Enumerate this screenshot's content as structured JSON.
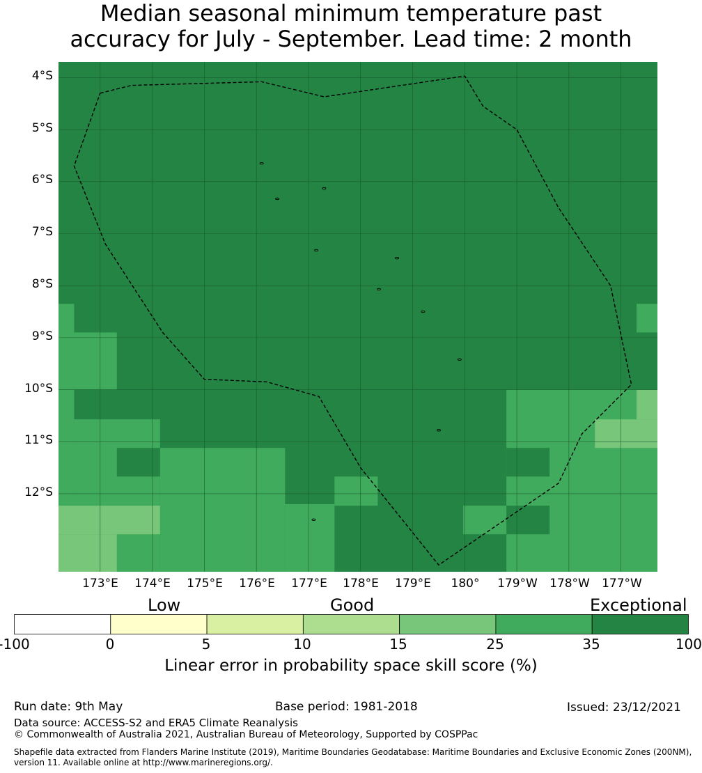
{
  "title_line1": "Median seasonal minimum temperature past",
  "title_line2": "accuracy for July - September. Lead time: 2 month",
  "map": {
    "lat_labels": [
      "4°S",
      "5°S",
      "6°S",
      "7°S",
      "8°S",
      "9°S",
      "10°S",
      "11°S",
      "12°S"
    ],
    "lon_labels": [
      "173°E",
      "174°E",
      "175°E",
      "176°E",
      "177°E",
      "178°E",
      "179°E",
      "180°",
      "179°W",
      "178°W",
      "177°W"
    ],
    "colors": {
      "c1": "#78c679",
      "c2": "#41ab5d",
      "c3": "#238443"
    },
    "cells": [
      {
        "lon0": 172.2,
        "lon1": 183.7,
        "lat0": -3.7,
        "lat1": -13.5,
        "c": "c3"
      },
      {
        "lon0": 172.2,
        "lon1": 172.5,
        "lat0": -8.35,
        "lat1": -13.5,
        "c": "c2"
      },
      {
        "lon0": 172.5,
        "lon1": 173.32,
        "lat0": -8.9,
        "lat1": -10.0,
        "c": "c2"
      },
      {
        "lon0": 172.5,
        "lon1": 174.15,
        "lat0": -10.57,
        "lat1": -13.5,
        "c": "c2"
      },
      {
        "lon0": 174.15,
        "lon1": 176.55,
        "lat0": -11.12,
        "lat1": -13.5,
        "c": "c2"
      },
      {
        "lon0": 176.55,
        "lon1": 177.5,
        "lat0": -12.2,
        "lat1": -13.5,
        "c": "c2"
      },
      {
        "lon0": 177.5,
        "lon1": 178.33,
        "lat0": -11.67,
        "lat1": -12.23,
        "c": "c2"
      },
      {
        "lon0": 173.32,
        "lon1": 174.15,
        "lat0": -11.12,
        "lat1": -11.67,
        "c": "c3"
      },
      {
        "lon0": 172.2,
        "lon1": 174.15,
        "lat0": -12.23,
        "lat1": -12.78,
        "c": "c1"
      },
      {
        "lon0": 172.2,
        "lon1": 173.32,
        "lat0": -12.78,
        "lat1": -13.5,
        "c": "c1"
      },
      {
        "lon0": 180.8,
        "lon1": 183.7,
        "lat0": -10.0,
        "lat1": -13.5,
        "c": "c2"
      },
      {
        "lon0": 180.8,
        "lon1": 181.63,
        "lat0": -11.12,
        "lat1": -11.67,
        "c": "c3"
      },
      {
        "lon0": 180.8,
        "lon1": 181.63,
        "lat0": -12.23,
        "lat1": -12.78,
        "c": "c3"
      },
      {
        "lon0": 179.97,
        "lon1": 180.8,
        "lat0": -12.23,
        "lat1": -12.78,
        "c": "c2"
      },
      {
        "lon0": 183.3,
        "lon1": 183.7,
        "lat0": -8.35,
        "lat1": -8.9,
        "c": "c2"
      },
      {
        "lon0": 183.3,
        "lon1": 183.7,
        "lat0": -10.0,
        "lat1": -10.57,
        "c": "c1"
      },
      {
        "lon0": 182.5,
        "lon1": 183.7,
        "lat0": -10.57,
        "lat1": -11.12,
        "c": "c1"
      }
    ],
    "eez_boundary": [
      [
        173.0,
        -4.3
      ],
      [
        173.6,
        -4.15
      ],
      [
        176.1,
        -4.08
      ],
      [
        177.3,
        -4.37
      ],
      [
        180.0,
        -3.97
      ],
      [
        180.35,
        -4.55
      ],
      [
        181.0,
        -5.0
      ],
      [
        181.8,
        -6.5
      ],
      [
        182.8,
        -8.0
      ],
      [
        183.2,
        -9.9
      ],
      [
        182.25,
        -10.85
      ],
      [
        181.8,
        -11.8
      ],
      [
        179.5,
        -13.37
      ],
      [
        178.0,
        -11.5
      ],
      [
        177.2,
        -10.13
      ],
      [
        176.2,
        -9.85
      ],
      [
        175.0,
        -9.8
      ],
      [
        174.2,
        -8.9
      ],
      [
        173.1,
        -7.2
      ],
      [
        172.5,
        -5.7
      ],
      [
        173.0,
        -4.3
      ]
    ],
    "islands": [
      [
        176.1,
        -5.65
      ],
      [
        177.3,
        -6.13
      ],
      [
        176.4,
        -6.33
      ],
      [
        177.15,
        -7.32
      ],
      [
        178.7,
        -7.47
      ],
      [
        178.35,
        -8.07
      ],
      [
        179.2,
        -8.5
      ],
      [
        179.9,
        -9.42
      ],
      [
        179.5,
        -10.78
      ],
      [
        177.1,
        -12.5
      ]
    ]
  },
  "colorbar": {
    "categories": [
      "Low",
      "Good",
      "Exceptional"
    ],
    "ticks": [
      "-100",
      "0",
      "5",
      "10",
      "15",
      "25",
      "35",
      "100"
    ],
    "colors": [
      "#ffffff",
      "#ffffcc",
      "#d9f0a3",
      "#addd8e",
      "#78c679",
      "#41ab5d",
      "#238443"
    ],
    "label": "Linear error in probability space skill score (%)"
  },
  "footer": {
    "run_date": "Run date: 9th May",
    "base_period": "Base period: 1981-2018",
    "issued": "Issued: 23/12/2021",
    "source": "Data source: ACCESS-S2 and ERA5 Climate Reanalysis",
    "copyright": "© Commonwealth of Australia 2021, Australian Bureau of Meteorology, Supported by COSPPac",
    "shapefile_line1": "Shapefile data extracted from Flanders Marine Institute (2019), Maritime Boundaries Geodatabase: Maritime Boundaries and Exclusive Economic Zones (200NM),",
    "shapefile_line2": "version 11. Available online at http://www.marineregions.org/."
  }
}
